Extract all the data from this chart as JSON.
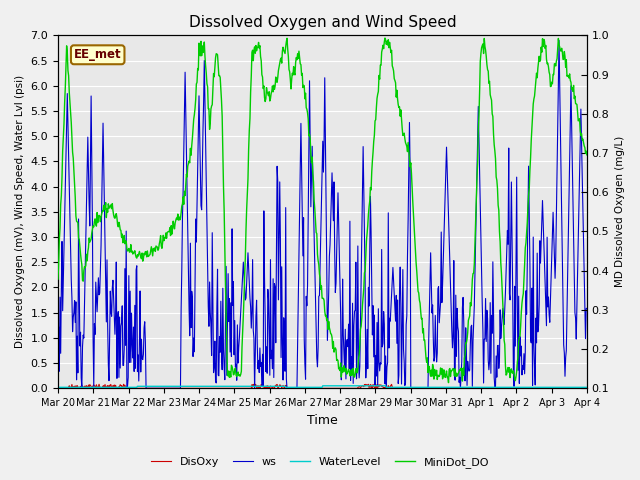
{
  "title": "Dissolved Oxygen and Wind Speed",
  "ylabel_left": "Dissolved Oxygen (mV), Wind Speed, Water Lvl (psi)",
  "ylabel_right": "MD Dissolved Oxygen (mg/L)",
  "xlabel": "Time",
  "ylim_left": [
    0.0,
    7.0
  ],
  "ylim_right": [
    0.1,
    1.0
  ],
  "annotation_text": "EE_met",
  "legend_labels": [
    "DisOxy",
    "ws",
    "WaterLevel",
    "MiniDot_DO"
  ],
  "line_colors": {
    "DisOxy": "#cc0000",
    "ws": "#0000cc",
    "WaterLevel": "#00cccc",
    "MiniDot_DO": "#00cc00"
  },
  "plot_bg_color": "#e8e8e8",
  "fig_bg_color": "#f0f0f0",
  "grid_color": "#ffffff",
  "x_tick_labels": [
    "Mar 20",
    "Mar 21",
    "Mar 22",
    "Mar 23",
    "Mar 24",
    "Mar 25",
    "Mar 26",
    "Mar 27",
    "Mar 28",
    "Mar 29",
    "Mar 30",
    "Mar 31",
    "Apr 1",
    "Apr 2",
    "Apr 3",
    "Apr 4"
  ],
  "yticks_left": [
    0.0,
    0.5,
    1.0,
    1.5,
    2.0,
    2.5,
    3.0,
    3.5,
    4.0,
    4.5,
    5.0,
    5.5,
    6.0,
    6.5,
    7.0
  ],
  "yticks_right": [
    0.1,
    0.2,
    0.3,
    0.4,
    0.5,
    0.6,
    0.7,
    0.8,
    0.9,
    1.0
  ],
  "num_points": 800,
  "num_days": 15
}
